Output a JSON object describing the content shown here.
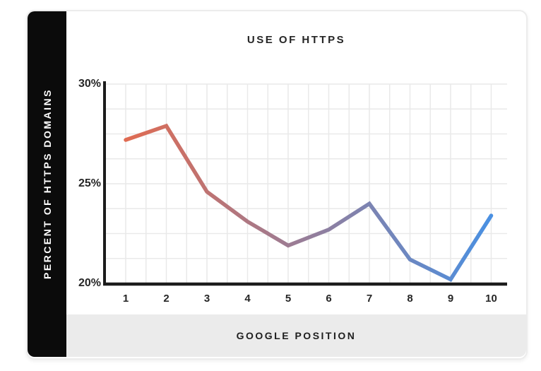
{
  "header": {
    "title": "USE OF HTTPS"
  },
  "sidebar": {
    "label": "PERCENT OF HTTPS DOMAINS"
  },
  "footer": {
    "label": "GOOGLE POSITION"
  },
  "chart_data": {
    "type": "line",
    "title": "USE OF HTTPS",
    "xlabel": "GOOGLE POSITION",
    "ylabel": "PERCENT OF HTTPS DOMAINS",
    "categories": [
      "1",
      "2",
      "3",
      "4",
      "5",
      "6",
      "7",
      "8",
      "9",
      "10"
    ],
    "values": [
      27.2,
      27.9,
      24.6,
      23.1,
      21.9,
      22.7,
      24.0,
      21.2,
      20.2,
      23.4
    ],
    "ylim": [
      20,
      30
    ],
    "yticks": [
      {
        "value": 30,
        "label": "30%"
      },
      {
        "value": 25,
        "label": "25%"
      },
      {
        "value": 20,
        "label": "20%"
      }
    ],
    "grid": true,
    "legend": "none",
    "colors": {
      "line_gradient_start": "#e06b52",
      "line_gradient_end": "#4a90e2",
      "axis": "#1c1c1c",
      "grid": "#e9e9e9",
      "sidebar_bg": "#0b0b0b",
      "band_bg": "#ebebeb",
      "text": "#262626"
    }
  }
}
